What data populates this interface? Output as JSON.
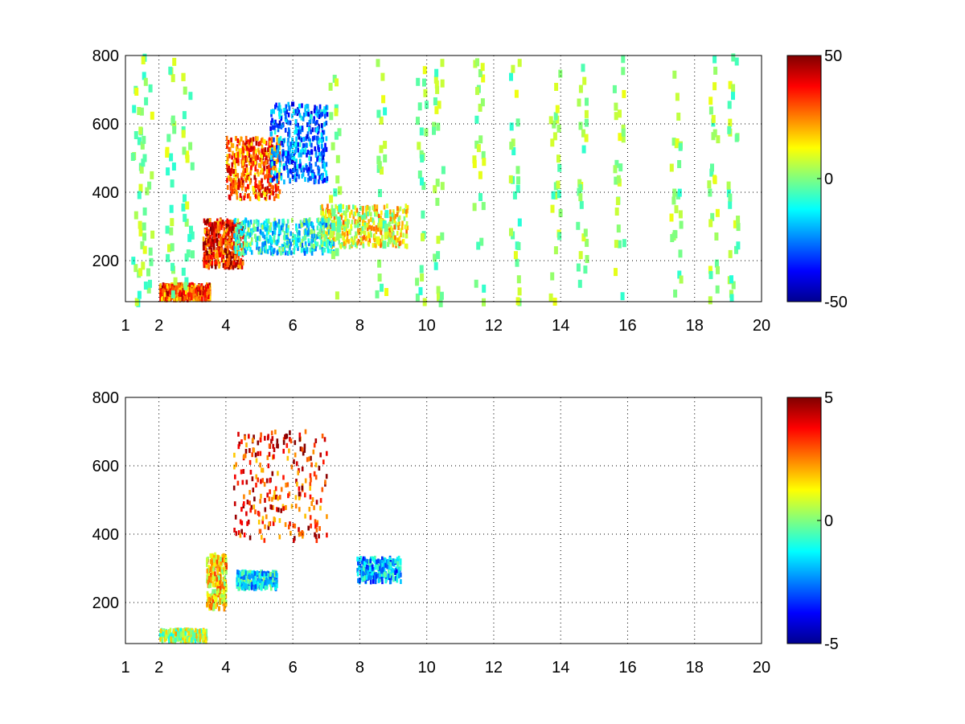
{
  "chart_data": [
    {
      "type": "heatmap",
      "title": "",
      "xlabel": "",
      "ylabel": "",
      "xlim": [
        1,
        20
      ],
      "ylim": [
        80,
        800
      ],
      "x_ticks": [
        "1",
        "2",
        "4",
        "6",
        "8",
        "10",
        "12",
        "14",
        "16",
        "18",
        "20"
      ],
      "y_ticks": [
        "200",
        "400",
        "600",
        "800"
      ],
      "grid": true,
      "colormap": "jet",
      "colorbar": {
        "min": -50,
        "max": 50,
        "ticks": [
          "50",
          "0",
          "-50"
        ]
      },
      "features": [
        {
          "x": [
            2.0,
            3.5
          ],
          "y": [
            85,
            130
          ],
          "value": 30,
          "note_unused": ""
        },
        {
          "x": [
            3.3,
            4.5
          ],
          "y": [
            180,
            320
          ],
          "value": 35
        },
        {
          "x": [
            4.0,
            5.6
          ],
          "y": [
            380,
            560
          ],
          "value": 28
        },
        {
          "x": [
            5.3,
            7.0
          ],
          "y": [
            430,
            660
          ],
          "value": -25
        },
        {
          "x": [
            6.8,
            9.4
          ],
          "y": [
            240,
            360
          ],
          "value": 12
        },
        {
          "x": [
            4.2,
            7.2
          ],
          "y": [
            220,
            320
          ],
          "value": -12
        }
      ]
    },
    {
      "type": "heatmap",
      "title": "",
      "xlabel": "",
      "ylabel": "",
      "xlim": [
        1,
        20
      ],
      "ylim": [
        80,
        800
      ],
      "x_ticks": [
        "1",
        "2",
        "4",
        "6",
        "8",
        "10",
        "12",
        "14",
        "16",
        "18",
        "20"
      ],
      "y_ticks": [
        "200",
        "400",
        "600",
        "800"
      ],
      "grid": true,
      "colormap": "jet",
      "colorbar": {
        "min": -5,
        "max": 5,
        "ticks": [
          "5",
          "0",
          "-5"
        ]
      },
      "features": [
        {
          "x": [
            2.0,
            3.4
          ],
          "y": [
            85,
            120
          ],
          "value": 0.5
        },
        {
          "x": [
            3.4,
            4.0
          ],
          "y": [
            180,
            340
          ],
          "value": 1.5
        },
        {
          "x": [
            4.2,
            7.0
          ],
          "y": [
            380,
            700
          ],
          "value": 3.5
        },
        {
          "x": [
            4.3,
            5.5
          ],
          "y": [
            240,
            290
          ],
          "value": -1.5
        },
        {
          "x": [
            7.9,
            9.2
          ],
          "y": [
            260,
            330
          ],
          "value": -2
        }
      ]
    }
  ]
}
